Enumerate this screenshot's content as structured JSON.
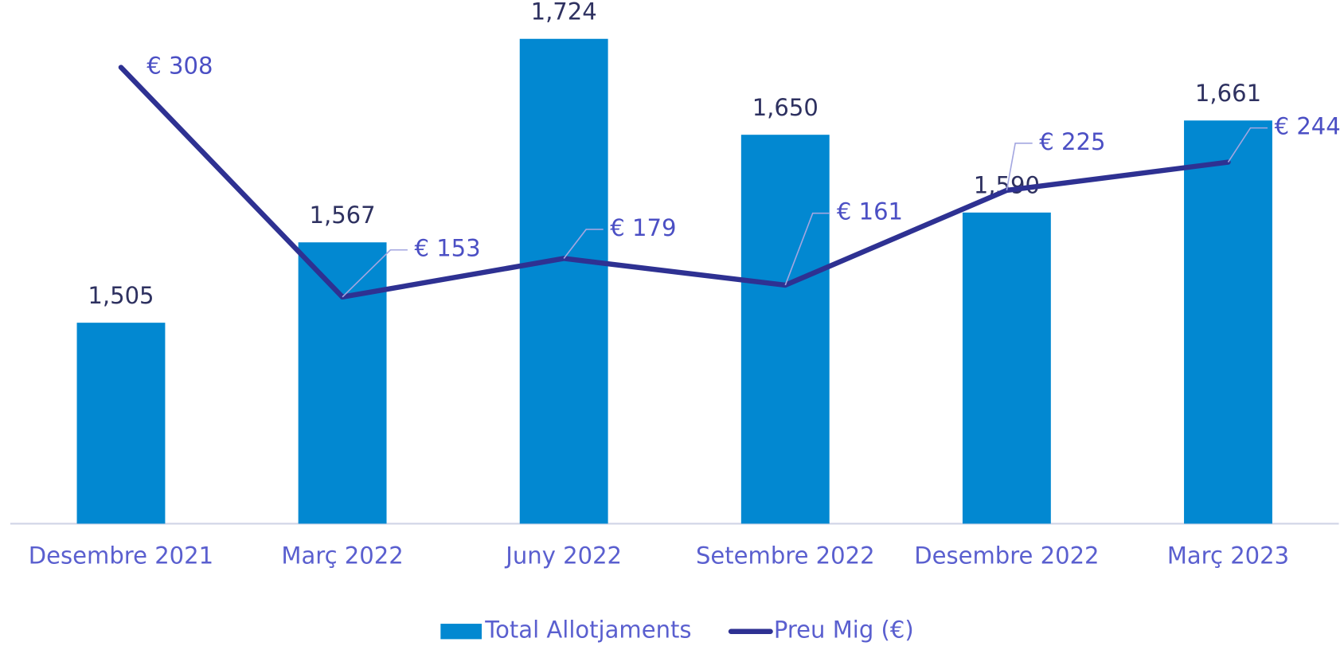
{
  "chart_data": {
    "type": "bar_line",
    "categories": [
      "Desembre 2021",
      "Març 2022",
      "Juny 2022",
      "Setembre 2022",
      "Desembre 2022",
      "Març 2023"
    ],
    "series": [
      {
        "name": "Total Allotjaments",
        "type": "bar",
        "color": "#0288d1",
        "values": [
          1505,
          1567,
          1724,
          1650,
          1590,
          1661
        ],
        "value_labels": [
          "1,505",
          "1,567",
          "1,724",
          "1,650",
          "1,590",
          "1,661"
        ]
      },
      {
        "name": "Preu Mig (€)",
        "type": "line",
        "axis": "y2",
        "color": "#2e3192",
        "values": [
          308,
          153,
          179,
          161,
          225,
          244
        ],
        "value_labels": [
          "€ 308",
          "€ 153",
          "€ 179",
          "€ 161",
          "€ 225",
          "€ 244"
        ]
      }
    ],
    "ylim": [
      1350,
      1750
    ],
    "y2lim": [
      0,
      350
    ],
    "legend": "bottom"
  }
}
